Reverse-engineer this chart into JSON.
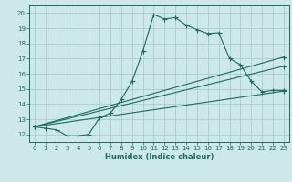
{
  "xlabel": "Humidex (Indice chaleur)",
  "bg_color": "#cce8e8",
  "grid_color": "#aacccc",
  "line_color": "#1a6b5a",
  "xlim": [
    -0.5,
    23.5
  ],
  "ylim": [
    11.5,
    20.5
  ],
  "xticks": [
    0,
    1,
    2,
    3,
    4,
    5,
    6,
    7,
    8,
    9,
    10,
    11,
    12,
    13,
    14,
    15,
    16,
    17,
    18,
    19,
    20,
    21,
    22,
    23
  ],
  "yticks": [
    12,
    13,
    14,
    15,
    16,
    17,
    18,
    19,
    20
  ],
  "line1_x": [
    0,
    1,
    2,
    3,
    4,
    5,
    6,
    7,
    8,
    9,
    10,
    11,
    12,
    13,
    14,
    15,
    16,
    17,
    18,
    19,
    20,
    21,
    22,
    23
  ],
  "line1_y": [
    12.5,
    12.4,
    12.3,
    11.9,
    11.9,
    12.0,
    13.1,
    13.4,
    14.3,
    15.5,
    17.5,
    19.9,
    19.6,
    19.7,
    19.2,
    18.9,
    18.65,
    18.7,
    17.0,
    16.6,
    15.5,
    14.8,
    14.9,
    14.9
  ],
  "line2_x": [
    0,
    23
  ],
  "line2_y": [
    12.5,
    14.85
  ],
  "line3_x": [
    0,
    23
  ],
  "line3_y": [
    12.5,
    16.5
  ],
  "line4_x": [
    0,
    23
  ],
  "line4_y": [
    12.5,
    17.1
  ]
}
